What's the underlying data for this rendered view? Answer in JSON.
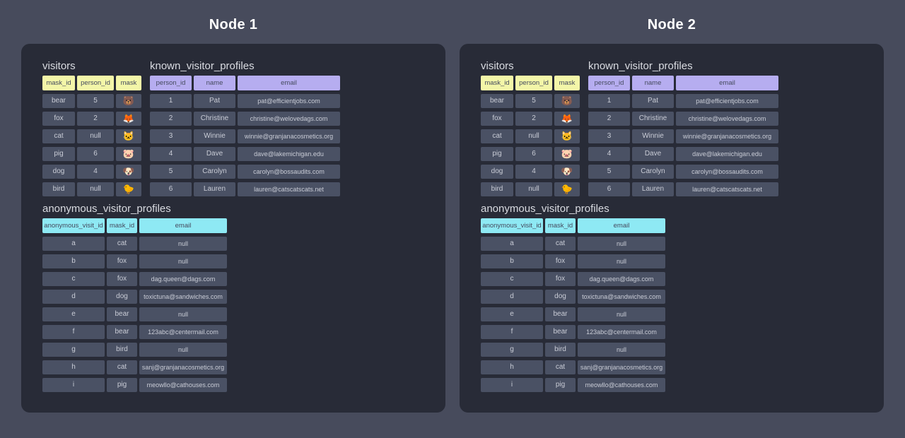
{
  "nodes": [
    {
      "title": "Node 1"
    },
    {
      "title": "Node 2"
    }
  ],
  "colors": {
    "page_bg": "#474B5C",
    "panel_bg": "#282B37",
    "cell_bg": "#4A5164",
    "cell_text": "#C9CCD6",
    "table_title_text": "#D9DBE1",
    "node_title_text": "#FFFFFF",
    "header_text": "#454A5E"
  },
  "tables": {
    "visitors": {
      "title": "visitors",
      "header_bg": "#F3F6A8",
      "columns": [
        "mask_id",
        "person_id",
        "mask"
      ],
      "rows": [
        [
          "bear",
          "5",
          "🐻"
        ],
        [
          "fox",
          "2",
          "🦊"
        ],
        [
          "cat",
          "null",
          "🐱"
        ],
        [
          "pig",
          "6",
          "🐷"
        ],
        [
          "dog",
          "4",
          "🐶"
        ],
        [
          "bird",
          "null",
          "🐤"
        ]
      ]
    },
    "known_visitor_profiles": {
      "title": "known_visitor_profiles",
      "header_bg": "#B6ADF0",
      "columns": [
        "person_id",
        "name",
        "email"
      ],
      "rows": [
        [
          "1",
          "Pat",
          "pat@efficientjobs.com"
        ],
        [
          "2",
          "Christine",
          "christine@welovedags.com"
        ],
        [
          "3",
          "Winnie",
          "winnie@granjanacosmetics.org"
        ],
        [
          "4",
          "Dave",
          "dave@lakemichigan.edu"
        ],
        [
          "5",
          "Carolyn",
          "carolyn@bossaudits.com"
        ],
        [
          "6",
          "Lauren",
          "lauren@catscatscats.net"
        ]
      ]
    },
    "anonymous_visitor_profiles": {
      "title": "anonymous_visitor_profiles",
      "header_bg": "#8EE9F4",
      "columns": [
        "anonymous_visit_id",
        "mask_id",
        "email"
      ],
      "rows": [
        [
          "a",
          "cat",
          "null"
        ],
        [
          "b",
          "fox",
          "null"
        ],
        [
          "c",
          "fox",
          "dag.queen@dags.com"
        ],
        [
          "d",
          "dog",
          "toxictuna@sandwiches.com"
        ],
        [
          "e",
          "bear",
          "null"
        ],
        [
          "f",
          "bear",
          "123abc@centermail.com"
        ],
        [
          "g",
          "bird",
          "null"
        ],
        [
          "h",
          "cat",
          "sanj@granjanacosmetics.org"
        ],
        [
          "i",
          "pig",
          "meowllo@cathouses.com"
        ]
      ]
    }
  }
}
